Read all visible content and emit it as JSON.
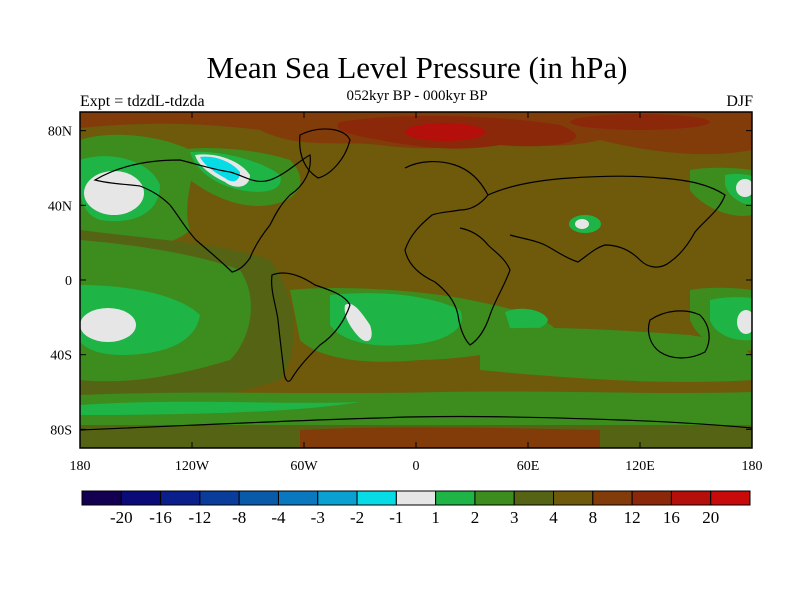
{
  "header": {
    "title": "Mean Sea Level Pressure (in hPa)",
    "subtitle": "052kyr BP - 000kyr BP",
    "left_label": "Expt = tdzdL-tdzda",
    "right_label": "DJF"
  },
  "axes": {
    "x_ticks": [
      "180",
      "120W",
      "60W",
      "0",
      "60E",
      "120E",
      "180"
    ],
    "y_ticks": [
      "80N",
      "40N",
      "0",
      "40S",
      "80S"
    ]
  },
  "colorbar": {
    "colors": [
      "#140050",
      "#0a0a78",
      "#0a1e8c",
      "#0a3c9b",
      "#0a5aaa",
      "#0a78be",
      "#0aa0d2",
      "#05dce6",
      "#e6e6e6",
      "#1eb446",
      "#3c8c1e",
      "#556414",
      "#6e5a0a",
      "#823c0a",
      "#8c280a",
      "#b40f0a",
      "#c80a0a"
    ],
    "labels": [
      "-20",
      "-16",
      "-12",
      "-8",
      "-4",
      "-3",
      "-2",
      "-1",
      "1",
      "2",
      "3",
      "4",
      "8",
      "12",
      "16",
      "20"
    ]
  },
  "chart_data": {
    "type": "heatmap",
    "title": "Mean Sea Level Pressure (in hPa)",
    "subtitle": "052kyr BP - 000kyr BP",
    "experiment": "Expt = tdzdL-tdzda",
    "season": "DJF",
    "projection": "cylindrical equidistant",
    "lon_range": [
      -180,
      180
    ],
    "lat_range": [
      -90,
      90
    ],
    "contour_levels": [
      -20,
      -16,
      -12,
      -8,
      -4,
      -3,
      -2,
      -1,
      1,
      2,
      3,
      4,
      8,
      12,
      16,
      20
    ],
    "units": "hPa"
  }
}
